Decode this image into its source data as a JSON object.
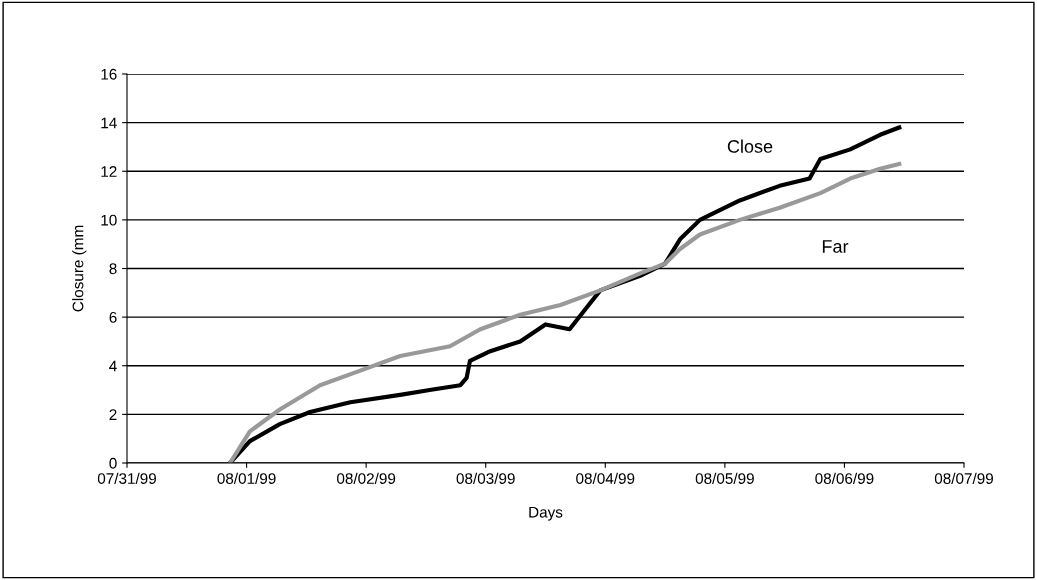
{
  "chart_data": {
    "type": "line",
    "xlabel": "Days",
    "ylabel": "Closure (mm",
    "ylim": [
      0,
      16
    ],
    "yticks": [
      0,
      2,
      4,
      6,
      8,
      10,
      12,
      14,
      16
    ],
    "xlim": [
      "1999-07-31",
      "1999-08-07"
    ],
    "xticks": [
      {
        "value": "1999-07-31",
        "label": "07/31/99"
      },
      {
        "value": "1999-08-01",
        "label": "08/01/99"
      },
      {
        "value": "1999-08-02",
        "label": "08/02/99"
      },
      {
        "value": "1999-08-03",
        "label": "08/03/99"
      },
      {
        "value": "1999-08-04",
        "label": "08/04/99"
      },
      {
        "value": "1999-08-05",
        "label": "08/05/99"
      },
      {
        "value": "1999-08-06",
        "label": "08/06/99"
      },
      {
        "value": "1999-08-07",
        "label": "08/07/99"
      }
    ],
    "grid": "y",
    "legend": false,
    "marker": "none",
    "line_style": "solid",
    "annotations": [
      "Close",
      "Far"
    ],
    "series": [
      {
        "color": "#000000",
        "x": [
          "1999-07-31T20:40",
          "1999-08-01T00:40",
          "1999-08-01T06:40",
          "1999-08-01T12:45",
          "1999-08-01T20:50",
          "1999-08-02T06:50",
          "1999-08-02T12:45",
          "1999-08-02T18:55",
          "1999-08-02T20:10",
          "1999-08-02T20:50",
          "1999-08-03T00:55",
          "1999-08-03T06:55",
          "1999-08-03T12:00",
          "1999-08-03T16:50",
          "1999-08-03T19:55",
          "1999-08-03T23:00",
          "1999-08-04T07:00",
          "1999-08-04T12:00",
          "1999-08-04T15:00",
          "1999-08-04T19:00",
          "1999-08-05T03:00",
          "1999-08-05T11:00",
          "1999-08-05T17:00",
          "1999-08-05T19:10",
          "1999-08-06T01:10",
          "1999-08-06T07:10",
          "1999-08-06T11:00"
        ],
        "values": [
          0,
          0.9,
          1.6,
          2.1,
          2.5,
          2.8,
          3.0,
          3.2,
          3.5,
          4.2,
          4.6,
          5.0,
          5.7,
          5.5,
          6.3,
          7.1,
          7.7,
          8.2,
          9.2,
          10.0,
          10.8,
          11.4,
          11.7,
          12.5,
          12.9,
          13.5,
          13.8
        ]
      },
      {
        "color": "#999999",
        "x": [
          "1999-07-31T20:40",
          "1999-08-01T00:40",
          "1999-08-01T06:40",
          "1999-08-01T14:45",
          "1999-08-01T22:50",
          "1999-08-02T06:50",
          "1999-08-02T16:50",
          "1999-08-02T22:55",
          "1999-08-03T06:55",
          "1999-08-03T15:00",
          "1999-08-03T23:00",
          "1999-08-04T07:00",
          "1999-08-04T12:00",
          "1999-08-04T15:00",
          "1999-08-04T19:00",
          "1999-08-05T03:00",
          "1999-08-05T11:00",
          "1999-08-05T19:10",
          "1999-08-06T01:10",
          "1999-08-06T07:10",
          "1999-08-06T11:00"
        ],
        "values": [
          0,
          1.3,
          2.2,
          3.2,
          3.8,
          4.4,
          4.8,
          5.5,
          6.1,
          6.5,
          7.1,
          7.8,
          8.2,
          8.8,
          9.4,
          10.0,
          10.5,
          11.1,
          11.7,
          12.1,
          12.3
        ]
      }
    ]
  }
}
